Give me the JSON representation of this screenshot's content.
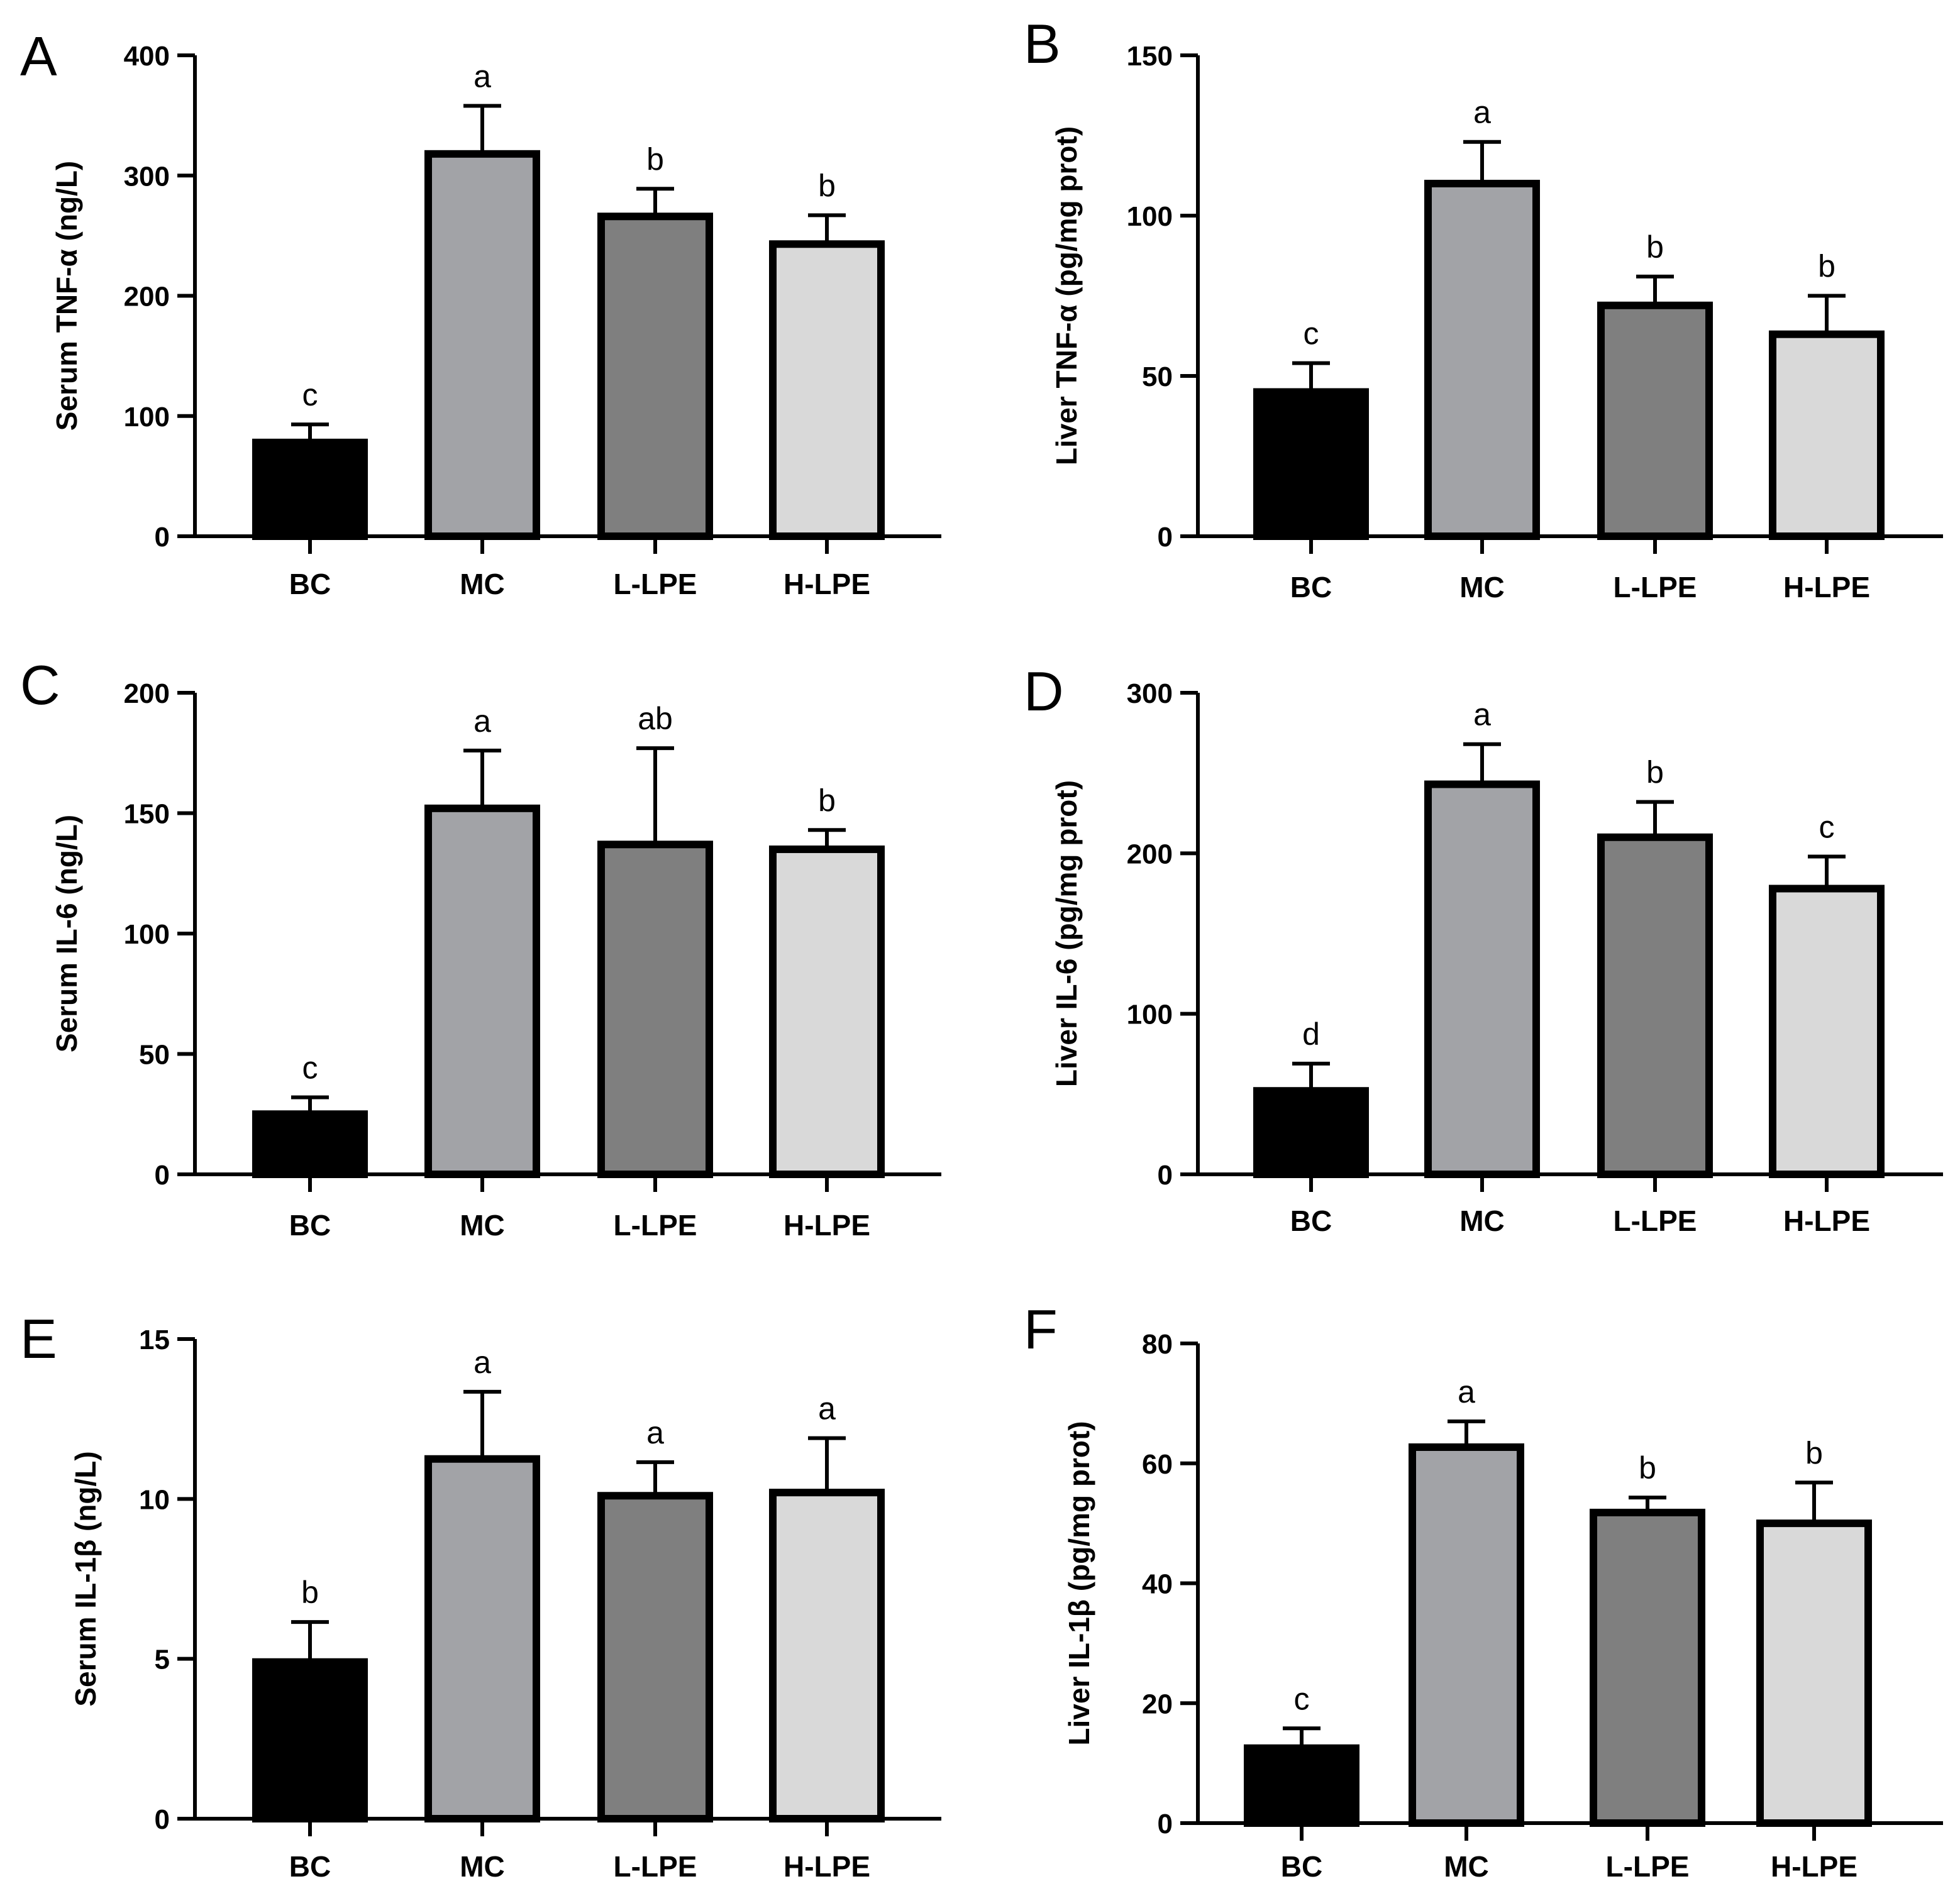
{
  "chart_data": [
    {
      "panel": "A",
      "type": "bar",
      "categories": [
        "BC",
        "MC",
        "L-LPE",
        "H-LPE"
      ],
      "values": [
        78,
        318,
        266,
        243
      ],
      "errors": [
        15,
        40,
        23,
        24
      ],
      "significance": [
        "c",
        "a",
        "b",
        "b"
      ],
      "ylabel": "Serum TNF-α (ng/L)",
      "ylim": [
        0,
        400
      ],
      "yticks": [
        0,
        100,
        200,
        300,
        400
      ],
      "ytick_labels": [
        "0",
        "100",
        "200",
        "300",
        "400"
      ],
      "colors": [
        "#000000",
        "#a2a3a7",
        "#7f7f7f",
        "#d9d9d9"
      ]
    },
    {
      "panel": "B",
      "type": "bar",
      "categories": [
        "BC",
        "MC",
        "L-LPE",
        "H-LPE"
      ],
      "values": [
        45,
        110,
        72,
        63
      ],
      "errors": [
        9,
        13,
        9,
        12
      ],
      "significance": [
        "c",
        "a",
        "b",
        "b"
      ],
      "ylabel": "Liver TNF-α (pg/mg prot)",
      "ylim": [
        0,
        150
      ],
      "yticks": [
        0,
        50,
        100,
        150
      ],
      "ytick_labels": [
        "0",
        "50",
        "100",
        "150"
      ],
      "colors": [
        "#000000",
        "#a2a3a7",
        "#7f7f7f",
        "#d9d9d9"
      ]
    },
    {
      "panel": "C",
      "type": "bar",
      "categories": [
        "BC",
        "MC",
        "L-LPE",
        "H-LPE"
      ],
      "values": [
        25,
        152,
        137,
        135
      ],
      "errors": [
        7,
        24,
        40,
        8
      ],
      "significance": [
        "c",
        "a",
        "ab",
        "b"
      ],
      "ylabel": "Serum IL-6 (ng/L)",
      "ylim": [
        0,
        200
      ],
      "yticks": [
        0,
        50,
        100,
        150,
        200
      ],
      "ytick_labels": [
        "0",
        "50",
        "100",
        "150",
        "200"
      ],
      "colors": [
        "#000000",
        "#a2a3a7",
        "#7f7f7f",
        "#d9d9d9"
      ]
    },
    {
      "panel": "D",
      "type": "bar",
      "categories": [
        "BC",
        "MC",
        "L-LPE",
        "H-LPE"
      ],
      "values": [
        52,
        243,
        210,
        178
      ],
      "errors": [
        17,
        25,
        22,
        20
      ],
      "significance": [
        "d",
        "a",
        "b",
        "c"
      ],
      "ylabel": "Liver IL-6 (pg/mg prot)",
      "ylim": [
        0,
        300
      ],
      "yticks": [
        0,
        100,
        200,
        300
      ],
      "ytick_labels": [
        "0",
        "100",
        "200",
        "300"
      ],
      "colors": [
        "#000000",
        "#a2a3a7",
        "#7f7f7f",
        "#d9d9d9"
      ]
    },
    {
      "panel": "E",
      "type": "bar",
      "categories": [
        "BC",
        "MC",
        "L-LPE",
        "H-LPE"
      ],
      "values": [
        4.9,
        11.25,
        10.1,
        10.2
      ],
      "errors": [
        1.25,
        2.1,
        1.05,
        1.7
      ],
      "significance": [
        "b",
        "a",
        "a",
        "a"
      ],
      "ylabel": "Serum IL-1β (ng/L)",
      "ylim": [
        0,
        15
      ],
      "yticks": [
        0,
        5,
        10,
        15
      ],
      "ytick_labels": [
        "0",
        "5",
        "10",
        "15"
      ],
      "colors": [
        "#000000",
        "#a2a3a7",
        "#7f7f7f",
        "#d9d9d9"
      ]
    },
    {
      "panel": "F",
      "type": "bar",
      "categories": [
        "BC",
        "MC",
        "L-LPE",
        "H-LPE"
      ],
      "values": [
        12.5,
        62.7,
        51.8,
        50
      ],
      "errors": [
        3.3,
        4.3,
        2.5,
        6.8
      ],
      "significance": [
        "c",
        "a",
        "b",
        "b"
      ],
      "ylabel": "Liver IL-1β (pg/mg prot)",
      "ylim": [
        0,
        80
      ],
      "yticks": [
        0,
        20,
        40,
        60,
        80
      ],
      "ytick_labels": [
        "0",
        "20",
        "40",
        "60",
        "80"
      ],
      "colors": [
        "#000000",
        "#a2a3a7",
        "#7f7f7f",
        "#d9d9d9"
      ]
    }
  ]
}
